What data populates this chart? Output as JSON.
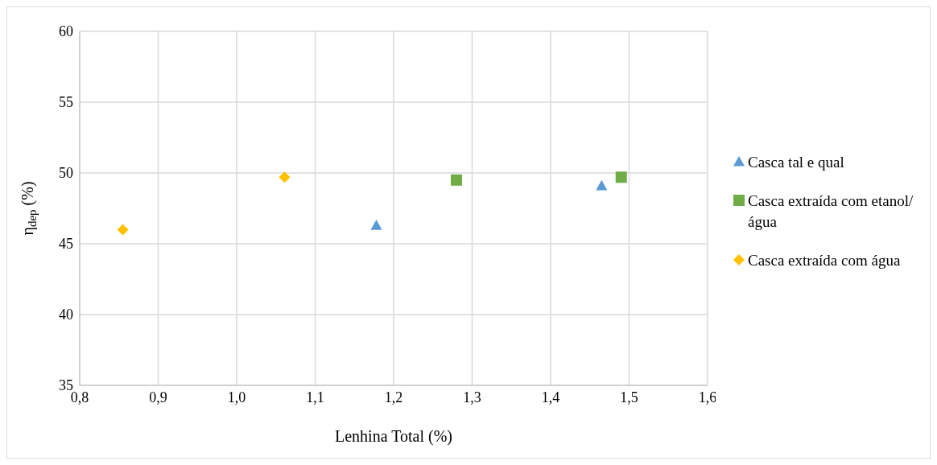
{
  "chart_data": {
    "type": "scatter",
    "xlabel": "Lenhina Total (%)",
    "ylabel": "η$_{dep}$ (%)",
    "xlim": [
      0.8,
      1.6
    ],
    "xticks": [
      {
        "value": 0.8,
        "label": "0,8"
      },
      {
        "value": 0.9,
        "label": "0,9"
      },
      {
        "value": 1.0,
        "label": "1,0"
      },
      {
        "value": 1.1,
        "label": "1,1"
      },
      {
        "value": 1.2,
        "label": "1,2"
      },
      {
        "value": 1.3,
        "label": "1,3"
      },
      {
        "value": 1.4,
        "label": "1,4"
      },
      {
        "value": 1.5,
        "label": "1,5"
      },
      {
        "value": 1.6,
        "label": "1,6"
      }
    ],
    "ylim": [
      35,
      60
    ],
    "yticks": [
      35,
      40,
      45,
      50,
      55,
      60
    ],
    "grid": true,
    "legend": "right",
    "series": [
      {
        "name": "Casca tal e qual",
        "color": "#5b9bd5",
        "marker": "triangle",
        "x": [
          1.178,
          1.465
        ],
        "values": [
          46.3,
          49.1
        ]
      },
      {
        "name": "Casca extraída com etanol/água",
        "color": "#70ad47",
        "marker": "square",
        "x": [
          1.28,
          1.49
        ],
        "values": [
          49.5,
          49.7
        ]
      },
      {
        "name": "Casca extraída com água",
        "color": "#ffc000",
        "marker": "diamond",
        "x": [
          0.855,
          1.061
        ],
        "values": [
          46.0,
          49.7
        ]
      }
    ]
  }
}
